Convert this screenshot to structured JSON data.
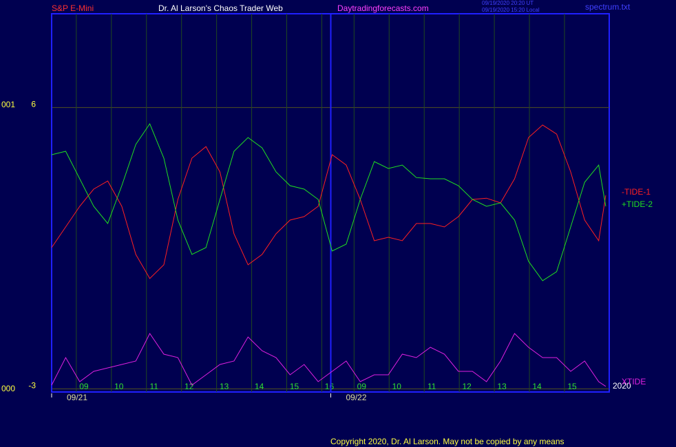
{
  "chart_data": {
    "type": "line",
    "header": {
      "market": "S&P E-Mini",
      "title": "Dr. Al Larson's Chaos Trader Web",
      "site": "Daytradingforecasts.com",
      "ut_time": "09/19/2020 20:20 UT",
      "local_time": "09/19/2020 15:20 Local",
      "file": "spectrum.txt"
    },
    "copyright": "Copyright 2020, Dr. Al Larson. May not be copied by any means",
    "year": "2020",
    "left_labels": [
      "001",
      "000"
    ],
    "ylim": [
      -3.1,
      9
    ],
    "yticks": [
      6,
      -3
    ],
    "xlim": [
      0,
      15.9
    ],
    "xticks": [
      {
        "value": 0.92,
        "label": "09"
      },
      {
        "value": 1.92,
        "label": "10"
      },
      {
        "value": 2.92,
        "label": "11"
      },
      {
        "value": 3.92,
        "label": "12"
      },
      {
        "value": 4.92,
        "label": "13"
      },
      {
        "value": 5.92,
        "label": "14"
      },
      {
        "value": 6.92,
        "label": "15"
      },
      {
        "value": 7.92,
        "label": "16"
      },
      {
        "value": 8.84,
        "label": "09"
      },
      {
        "value": 9.84,
        "label": "10"
      },
      {
        "value": 10.84,
        "label": "11"
      },
      {
        "value": 11.84,
        "label": "12"
      },
      {
        "value": 12.84,
        "label": "13"
      },
      {
        "value": 13.84,
        "label": "14"
      },
      {
        "value": 14.84,
        "label": "15"
      }
    ],
    "day_starts": [
      {
        "value": 0,
        "label": "09/21"
      },
      {
        "value": 7.96,
        "label": "09/22"
      }
    ],
    "grid": true,
    "x": [
      0,
      0.4,
      0.8,
      1.2,
      1.6,
      2.0,
      2.4,
      2.8,
      3.2,
      3.6,
      4.0,
      4.4,
      4.8,
      5.2,
      5.6,
      6.0,
      6.4,
      6.8,
      7.2,
      7.6,
      8.0,
      8.4,
      8.8,
      9.2,
      9.6,
      10.0,
      10.4,
      10.8,
      11.2,
      11.6,
      12.0,
      12.4,
      12.8,
      13.2,
      13.6,
      14.0,
      14.4,
      14.8,
      15.2,
      15.6,
      15.8
    ],
    "series": [
      {
        "name": "-TIDE-1",
        "color": "#ff2020",
        "values": [
          1.52,
          2.18,
          2.84,
          3.39,
          3.65,
          2.84,
          1.3,
          0.53,
          0.97,
          3.06,
          4.38,
          4.75,
          3.94,
          1.96,
          0.97,
          1.3,
          1.96,
          2.4,
          2.51,
          2.84,
          4.49,
          4.16,
          3.06,
          1.74,
          1.85,
          1.74,
          2.29,
          2.29,
          2.18,
          2.51,
          3.06,
          3.1,
          2.95,
          3.72,
          5.04,
          5.44,
          5.15,
          3.94,
          2.4,
          1.74,
          3.19
        ]
      },
      {
        "name": "+TIDE-2",
        "color": "#20e020",
        "values": [
          4.49,
          4.6,
          3.72,
          2.84,
          2.29,
          3.5,
          4.82,
          5.48,
          4.38,
          2.4,
          1.3,
          1.52,
          3.06,
          4.6,
          5.04,
          4.71,
          3.94,
          3.5,
          3.39,
          3.06,
          1.41,
          1.63,
          3.06,
          4.27,
          4.05,
          4.16,
          3.76,
          3.72,
          3.72,
          3.5,
          3.06,
          2.84,
          2.95,
          2.4,
          1.08,
          0.46,
          0.75,
          2.18,
          3.61,
          4.16,
          2.84
        ]
      },
      {
        "name": "XTIDE",
        "color": "#e020e0",
        "values": [
          -2.88,
          -2.0,
          -2.77,
          -2.44,
          -2.33,
          -2.22,
          -2.11,
          -1.23,
          -1.89,
          -2.0,
          -2.88,
          -2.55,
          -2.22,
          -2.11,
          -1.34,
          -1.78,
          -2.0,
          -2.55,
          -2.22,
          -2.77,
          -2.44,
          -2.11,
          -2.77,
          -2.55,
          -2.55,
          -1.89,
          -2.0,
          -1.67,
          -1.89,
          -2.44,
          -2.44,
          -2.77,
          -2.11,
          -1.23,
          -1.67,
          -2.0,
          -2.0,
          -2.44,
          -2.11,
          -2.77,
          -2.92
        ]
      }
    ]
  }
}
